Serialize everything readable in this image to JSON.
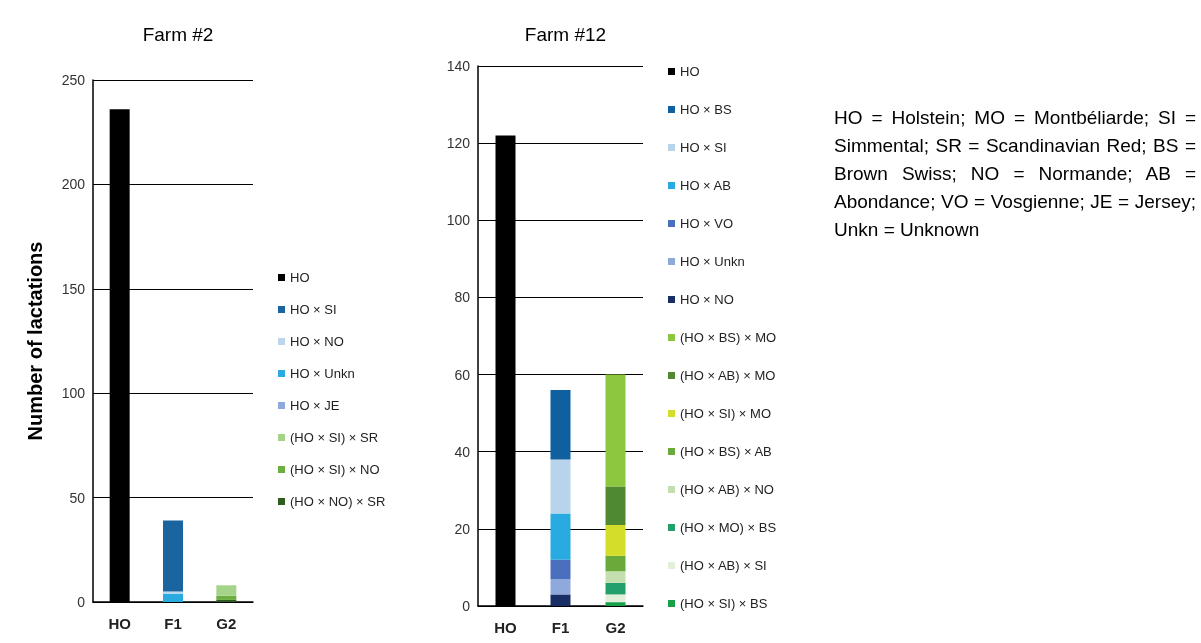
{
  "chart_data": [
    {
      "type": "bar",
      "title": "Farm #2",
      "ylabel": "Number of lactations",
      "categories": [
        "HO",
        "F1",
        "G2"
      ],
      "stacked": true,
      "ylim": [
        0,
        250
      ],
      "yticks": [
        0,
        50,
        100,
        150,
        200,
        250
      ],
      "grid": "y",
      "legend": "right",
      "series": [
        {
          "name": "(HO × NO) × SR",
          "color": "#2e5e1f",
          "values": [
            null,
            null,
            1
          ]
        },
        {
          "name": "(HO × SI) × NO",
          "color": "#6aaf3f",
          "values": [
            null,
            null,
            2
          ]
        },
        {
          "name": "(HO × SI) × SR",
          "color": "#a6d38a",
          "values": [
            null,
            null,
            5
          ]
        },
        {
          "name": "HO × JE",
          "color": "#8fa9dc",
          "values": [
            null,
            null,
            null
          ]
        },
        {
          "name": "HO × Unkn",
          "color": "#29abe2",
          "values": [
            null,
            4,
            null
          ]
        },
        {
          "name": "HO × NO",
          "color": "#bcd6ee",
          "values": [
            null,
            1,
            null
          ]
        },
        {
          "name": "HO × SI",
          "color": "#1a64a0",
          "values": [
            null,
            34,
            null
          ]
        },
        {
          "name": "HO",
          "color": "#000000",
          "values": [
            236,
            null,
            null
          ]
        }
      ]
    },
    {
      "type": "bar",
      "title": "Farm #12",
      "categories": [
        "HO",
        "F1",
        "G2"
      ],
      "stacked": true,
      "ylim": [
        0,
        140
      ],
      "yticks": [
        0,
        20,
        40,
        60,
        80,
        100,
        120,
        140
      ],
      "grid": "y",
      "legend": "right",
      "series": [
        {
          "name": "(HO × SI) × BS",
          "color": "#17a04a",
          "values": [
            null,
            null,
            1
          ]
        },
        {
          "name": "(HO × AB) × SI",
          "color": "#e2efd9",
          "values": [
            null,
            null,
            2
          ]
        },
        {
          "name": "(HO × MO) × BS",
          "color": "#22a06b",
          "values": [
            null,
            null,
            3
          ]
        },
        {
          "name": "(HO × AB) × NO",
          "color": "#c3dfb0",
          "values": [
            null,
            null,
            3
          ]
        },
        {
          "name": "(HO × BS) × AB",
          "color": "#6aaa3a",
          "values": [
            null,
            null,
            4
          ]
        },
        {
          "name": "(HO × SI) × MO",
          "color": "#d3dd2a",
          "values": [
            null,
            null,
            8
          ]
        },
        {
          "name": "(HO × AB) × MO",
          "color": "#4f8a33",
          "values": [
            null,
            null,
            10
          ]
        },
        {
          "name": "(HO × BS) × MO",
          "color": "#8dc63f",
          "values": [
            null,
            null,
            29
          ]
        },
        {
          "name": "HO × NO",
          "color": "#1a2e66",
          "values": [
            null,
            3,
            null
          ]
        },
        {
          "name": "HO × Unkn",
          "color": "#8fa9dc",
          "values": [
            null,
            4,
            null
          ]
        },
        {
          "name": "HO × VO",
          "color": "#4a6fbd",
          "values": [
            null,
            5,
            null
          ]
        },
        {
          "name": "HO × AB",
          "color": "#29abe2",
          "values": [
            null,
            12,
            null
          ]
        },
        {
          "name": "HO × SI",
          "color": "#b8d3ec",
          "values": [
            null,
            14,
            null
          ]
        },
        {
          "name": "HO × BS",
          "color": "#10609f",
          "values": [
            null,
            18,
            null
          ]
        },
        {
          "name": "HO",
          "color": "#000000",
          "values": [
            122,
            null,
            null
          ]
        }
      ]
    },
    {
      "type": "other",
      "annotations": [
        "HO = Holstein; MO = Montbéliarde; SI = Simmental; SR = Scandinavian Red; BS = Brown Swiss; NO = Normande; AB = Abondance; VO = Vosgienne; JE = Jersey; Unkn = Unknown"
      ]
    }
  ]
}
